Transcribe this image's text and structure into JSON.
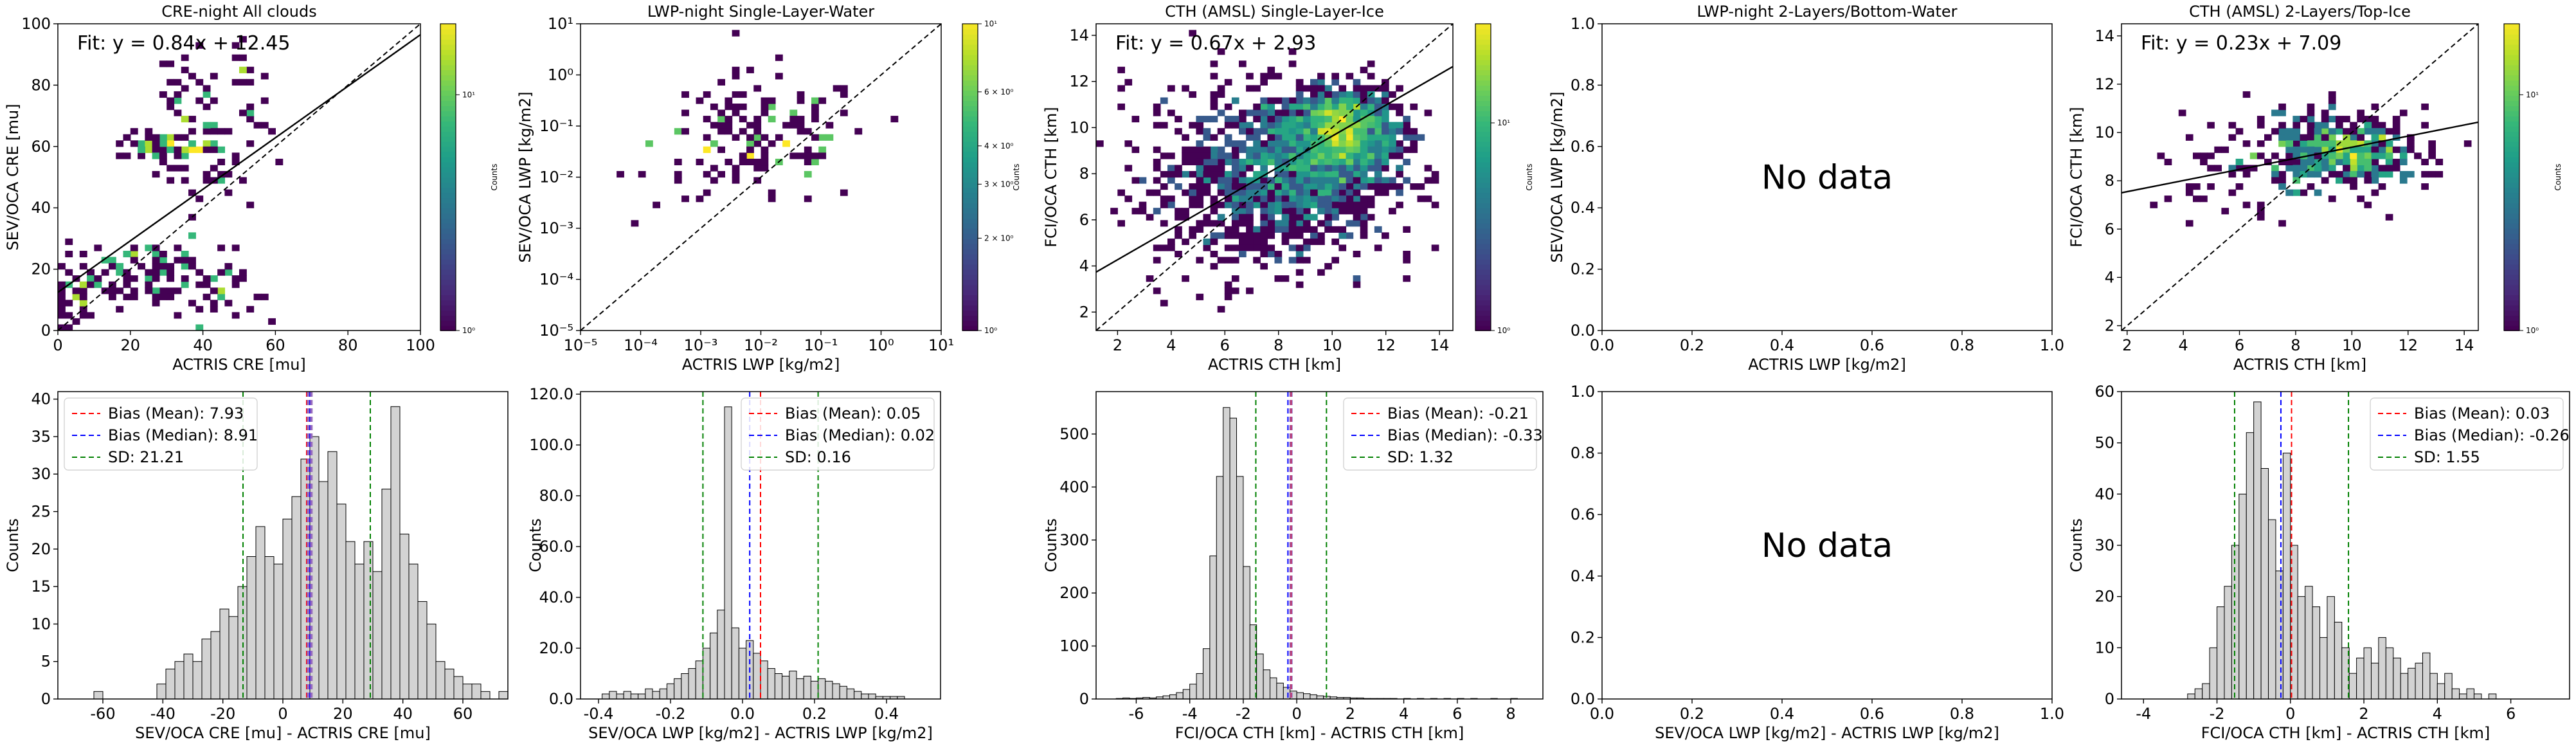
{
  "figure": {
    "no_data_text": "No data"
  },
  "chart_data": [
    {
      "id": "p1",
      "type": "heatmap",
      "title": "CRE-night All clouds",
      "xlabel": "ACTRIS CRE [mu]",
      "ylabel": "SEV/OCA CRE [mu]",
      "xlim": [
        0,
        100
      ],
      "ylim": [
        0,
        100
      ],
      "xticks": [
        0,
        20,
        40,
        60,
        80,
        100
      ],
      "yticks": [
        0,
        20,
        40,
        60,
        80,
        100
      ],
      "fit": {
        "label": "Fit: y = 0.84x + 12.45",
        "slope": 0.84,
        "intercept": 12.45
      },
      "one_to_one": true,
      "colorbar": {
        "label": "Counts",
        "scale": "log",
        "min": 1,
        "max": 20,
        "ticks": [
          {
            "v": 1,
            "label": "10⁰"
          },
          {
            "v": 10,
            "label": "10¹"
          }
        ]
      },
      "clusters": [
        {
          "cx": 5,
          "cy": 10,
          "sx": 3,
          "sy": 7,
          "n": 40,
          "max": 14
        },
        {
          "cx": 15,
          "cy": 18,
          "sx": 4,
          "sy": 5,
          "n": 25,
          "max": 6
        },
        {
          "cx": 30,
          "cy": 60,
          "sx": 7,
          "sy": 2,
          "n": 55,
          "max": 9
        },
        {
          "cx": 27,
          "cy": 20,
          "sx": 7,
          "sy": 7,
          "n": 60,
          "max": 4
        },
        {
          "cx": 45,
          "cy": 14,
          "sx": 5,
          "sy": 6,
          "n": 35,
          "max": 3
        },
        {
          "cx": 42,
          "cy": 58,
          "sx": 7,
          "sy": 10,
          "n": 55,
          "max": 3
        },
        {
          "cx": 35,
          "cy": 78,
          "sx": 4,
          "sy": 7,
          "n": 25,
          "max": 3
        },
        {
          "cx": 50,
          "cy": 85,
          "sx": 4,
          "sy": 8,
          "n": 20,
          "max": 2
        }
      ]
    },
    {
      "id": "p2",
      "type": "heatmap",
      "title": "LWP-night Single-Layer-Water",
      "xlabel": "ACTRIS LWP [kg/m2]",
      "ylabel": "SEV/OCA LWP [kg/m2]",
      "xscale": "log",
      "yscale": "log",
      "xlim": [
        1e-05,
        10
      ],
      "ylim": [
        1e-05,
        10
      ],
      "xticks": [
        {
          "v": 1e-05,
          "label": "10⁻⁵"
        },
        {
          "v": 0.0001,
          "label": "10⁻⁴"
        },
        {
          "v": 0.001,
          "label": "10⁻³"
        },
        {
          "v": 0.01,
          "label": "10⁻²"
        },
        {
          "v": 0.1,
          "label": "10⁻¹"
        },
        {
          "v": 1,
          "label": "10⁰"
        },
        {
          "v": 10,
          "label": "10¹"
        }
      ],
      "yticks": [
        {
          "v": 1e-05,
          "label": "10⁻⁵"
        },
        {
          "v": 0.0001,
          "label": "10⁻⁴"
        },
        {
          "v": 0.001,
          "label": "10⁻³"
        },
        {
          "v": 0.01,
          "label": "10⁻²"
        },
        {
          "v": 0.1,
          "label": "10⁻¹"
        },
        {
          "v": 1,
          "label": "10⁰"
        },
        {
          "v": 10,
          "label": "10¹"
        }
      ],
      "one_to_one": true,
      "colorbar": {
        "label": "Counts",
        "scale": "log",
        "min": 1,
        "max": 10,
        "ticks": [
          {
            "v": 1,
            "label": "10⁰"
          },
          {
            "v": 2,
            "label": "2 × 10⁰"
          },
          {
            "v": 3,
            "label": "3 × 10⁰"
          },
          {
            "v": 4,
            "label": "4 × 10⁰"
          },
          {
            "v": 6,
            "label": "6 × 10⁰"
          },
          {
            "v": 10,
            "label": "10¹"
          }
        ]
      },
      "clusters": [
        {
          "cx": -2.0,
          "cy": -1.3,
          "sx": 0.9,
          "sy": 0.65,
          "n": 150,
          "max": 4
        }
      ]
    },
    {
      "id": "p3",
      "type": "heatmap",
      "title": "CTH (AMSL) Single-Layer-Ice",
      "xlabel": "ACTRIS CTH [km]",
      "ylabel": "FCI/OCA CTH [km]",
      "xlim": [
        1.2,
        14.5
      ],
      "ylim": [
        1.2,
        14.5
      ],
      "xticks": [
        2,
        4,
        6,
        8,
        10,
        12,
        14
      ],
      "yticks": [
        2,
        4,
        6,
        8,
        10,
        12,
        14
      ],
      "fit": {
        "label": "Fit: y = 0.67x + 2.93",
        "slope": 0.67,
        "intercept": 2.93
      },
      "one_to_one": true,
      "colorbar": {
        "label": "Counts",
        "scale": "log",
        "min": 1,
        "max": 30,
        "ticks": [
          {
            "v": 1,
            "label": "10⁰"
          },
          {
            "v": 10,
            "label": "10¹"
          }
        ]
      },
      "clusters": [
        {
          "cx": 10.4,
          "cy": 9.9,
          "sx": 1.0,
          "sy": 0.9,
          "n": 900,
          "max": 30
        },
        {
          "cx": 8.5,
          "cy": 8.3,
          "sx": 1.9,
          "sy": 1.6,
          "n": 900,
          "max": 10
        },
        {
          "cx": 7.0,
          "cy": 7.5,
          "sx": 2.4,
          "sy": 2.4,
          "n": 350,
          "max": 3
        }
      ]
    },
    {
      "id": "p4",
      "type": "heatmap",
      "title": "LWP-night 2-Layers/Bottom-Water",
      "xlabel": "ACTRIS LWP [kg/m2]",
      "ylabel": "SEV/OCA LWP [kg/m2]",
      "xlim": [
        0,
        1
      ],
      "ylim": [
        0,
        1
      ],
      "xticks": [
        0.0,
        0.2,
        0.4,
        0.6,
        0.8,
        1.0
      ],
      "yticks": [
        0.0,
        0.2,
        0.4,
        0.6,
        0.8,
        1.0
      ],
      "tick_decimals": 1,
      "no_data": true
    },
    {
      "id": "p5",
      "type": "heatmap",
      "title": "CTH (AMSL) 2-Layers/Top-Ice",
      "xlabel": "ACTRIS CTH [km]",
      "ylabel": "FCI/OCA CTH [km]",
      "xlim": [
        1.8,
        14.5
      ],
      "ylim": [
        1.8,
        14.5
      ],
      "xticks": [
        2,
        4,
        6,
        8,
        10,
        12,
        14
      ],
      "yticks": [
        2,
        4,
        6,
        8,
        10,
        12,
        14
      ],
      "fit": {
        "label": "Fit: y = 0.23x + 7.09",
        "slope": 0.23,
        "intercept": 7.09
      },
      "one_to_one": true,
      "colorbar": {
        "label": "Counts",
        "scale": "log",
        "min": 1,
        "max": 20,
        "ticks": [
          {
            "v": 1,
            "label": "10⁰"
          },
          {
            "v": 10,
            "label": "10¹"
          }
        ]
      },
      "clusters": [
        {
          "cx": 9.8,
          "cy": 9.2,
          "sx": 1.3,
          "sy": 0.7,
          "n": 400,
          "max": 20
        },
        {
          "cx": 7.5,
          "cy": 8.8,
          "sx": 2.2,
          "sy": 1.1,
          "n": 120,
          "max": 3
        }
      ]
    },
    {
      "id": "p6",
      "type": "bar",
      "xlabel": "SEV/OCA CRE [mu] - ACTRIS CRE [mu]",
      "ylabel": "Counts",
      "xlim": [
        -75,
        75
      ],
      "ylim": [
        0,
        41
      ],
      "xticks": [
        -60,
        -40,
        -20,
        0,
        20,
        40,
        60
      ],
      "yticks": [
        0,
        5,
        10,
        15,
        20,
        25,
        30,
        35,
        40
      ],
      "bin_start": -63,
      "bin_width": 3,
      "counts": [
        1,
        0,
        0,
        0,
        0,
        0,
        0,
        2,
        4,
        5,
        6,
        5,
        8,
        9,
        12,
        11,
        15,
        19,
        23,
        19,
        18,
        24,
        27,
        32,
        35,
        29,
        33,
        26,
        21,
        18,
        21,
        17,
        28,
        39,
        22,
        18,
        13,
        10,
        5,
        4,
        3,
        2,
        2,
        1,
        0,
        1,
        1
      ],
      "lines": [
        {
          "label": "Bias (Mean): 7.93",
          "value": 7.93,
          "color": "#ff0000"
        },
        {
          "label": "Bias (Median): 8.91",
          "value": 8.91,
          "color": "#0000ff"
        },
        {
          "label": "SD: 21.21",
          "value": 21.21,
          "color": "#008000",
          "sd": true
        }
      ],
      "mode_lines": [
        8.2,
        8.6,
        9.3,
        9.7
      ],
      "mode_color": "#9467bd",
      "legend_position": "upper left"
    },
    {
      "id": "p7",
      "type": "bar",
      "xlabel": "SEV/OCA LWP [kg/m2] - ACTRIS LWP [kg/m2]",
      "ylabel": "Counts",
      "xlim": [
        -0.45,
        0.55
      ],
      "ylim": [
        0,
        121
      ],
      "xticks": [
        -0.4,
        -0.2,
        0.0,
        0.2,
        0.4
      ],
      "yticks": [
        0,
        20,
        40,
        60,
        80,
        100,
        120
      ],
      "tick_decimals": 1,
      "bin_start": -0.39,
      "bin_width": 0.02,
      "counts": [
        2,
        3,
        2,
        3,
        2,
        2,
        4,
        3,
        4,
        6,
        8,
        10,
        12,
        15,
        20,
        26,
        35,
        115,
        28,
        20,
        23,
        18,
        15,
        12,
        10,
        9,
        11,
        8,
        9,
        7,
        8,
        7,
        6,
        5,
        4,
        3,
        2,
        2,
        1,
        1,
        1,
        1
      ],
      "lines": [
        {
          "label": "Bias (Mean): 0.05",
          "value": 0.05,
          "color": "#ff0000"
        },
        {
          "label": "Bias (Median): 0.02",
          "value": 0.02,
          "color": "#0000ff"
        },
        {
          "label": "SD: 0.16",
          "value": 0.16,
          "color": "#008000",
          "sd": true
        }
      ],
      "legend_position": "upper right"
    },
    {
      "id": "p8",
      "type": "bar",
      "xlabel": "FCI/OCA CTH [km] - ACTRIS CTH [km]",
      "ylabel": "Counts",
      "xlim": [
        -7.5,
        9.2
      ],
      "ylim": [
        0,
        580
      ],
      "xticks": [
        -6,
        -4,
        -2,
        0,
        2,
        4,
        6,
        8
      ],
      "yticks": [
        0,
        100,
        200,
        300,
        400,
        500
      ],
      "bin_start": -6.75,
      "bin_width": 0.25,
      "counts": [
        1,
        2,
        1,
        2,
        3,
        2,
        4,
        6,
        8,
        12,
        18,
        28,
        48,
        95,
        270,
        420,
        550,
        530,
        420,
        250,
        140,
        85,
        55,
        40,
        30,
        22,
        15,
        12,
        10,
        8,
        6,
        5,
        4,
        3,
        3,
        2,
        2,
        1,
        1,
        1,
        1,
        1,
        0,
        1,
        0,
        1,
        0,
        1,
        0,
        1,
        0,
        1,
        0,
        1,
        0,
        0,
        1,
        0,
        0,
        1
      ],
      "lines": [
        {
          "label": "Bias (Mean): -0.21",
          "value": -0.21,
          "color": "#ff0000"
        },
        {
          "label": "Bias (Median): -0.33",
          "value": -0.33,
          "color": "#0000ff"
        },
        {
          "label": "SD: 1.32",
          "value": 1.32,
          "color": "#008000",
          "sd": true
        }
      ],
      "mode_lines": [
        -0.25,
        -0.18
      ],
      "mode_color": "#9467bd",
      "legend_position": "upper right"
    },
    {
      "id": "p9",
      "type": "bar",
      "xlabel": "SEV/OCA LWP [kg/m2] - ACTRIS LWP [kg/m2]",
      "xlim": [
        0,
        1
      ],
      "ylim": [
        0,
        1
      ],
      "xticks": [
        0.0,
        0.2,
        0.4,
        0.6,
        0.8,
        1.0
      ],
      "yticks": [
        0.0,
        0.2,
        0.4,
        0.6,
        0.8,
        1.0
      ],
      "tick_decimals": 1,
      "no_data": true
    },
    {
      "id": "p10",
      "type": "bar",
      "xlabel": "FCI/OCA CTH [km] - ACTRIS CTH [km]",
      "ylabel": "Counts",
      "xlim": [
        -4.6,
        7.6
      ],
      "ylim": [
        0,
        60
      ],
      "xticks": [
        -4,
        -2,
        0,
        2,
        4,
        6
      ],
      "yticks": [
        0,
        10,
        20,
        30,
        40,
        50,
        60
      ],
      "bin_start": -2.8,
      "bin_width": 0.2,
      "counts": [
        1,
        2,
        3,
        10,
        18,
        22,
        30,
        40,
        52,
        58,
        45,
        35,
        25,
        48,
        30,
        20,
        22,
        18,
        12,
        20,
        15,
        10,
        5,
        8,
        10,
        7,
        12,
        10,
        8,
        5,
        6,
        7,
        9,
        5,
        3,
        5,
        2,
        1,
        2,
        1,
        0,
        1
      ],
      "lines": [
        {
          "label": "Bias (Mean): 0.03",
          "value": 0.03,
          "color": "#ff0000"
        },
        {
          "label": "Bias (Median): -0.26",
          "value": -0.26,
          "color": "#0000ff"
        },
        {
          "label": "SD: 1.55",
          "value": 1.55,
          "color": "#008000",
          "sd": true
        }
      ],
      "legend_position": "upper right"
    }
  ]
}
